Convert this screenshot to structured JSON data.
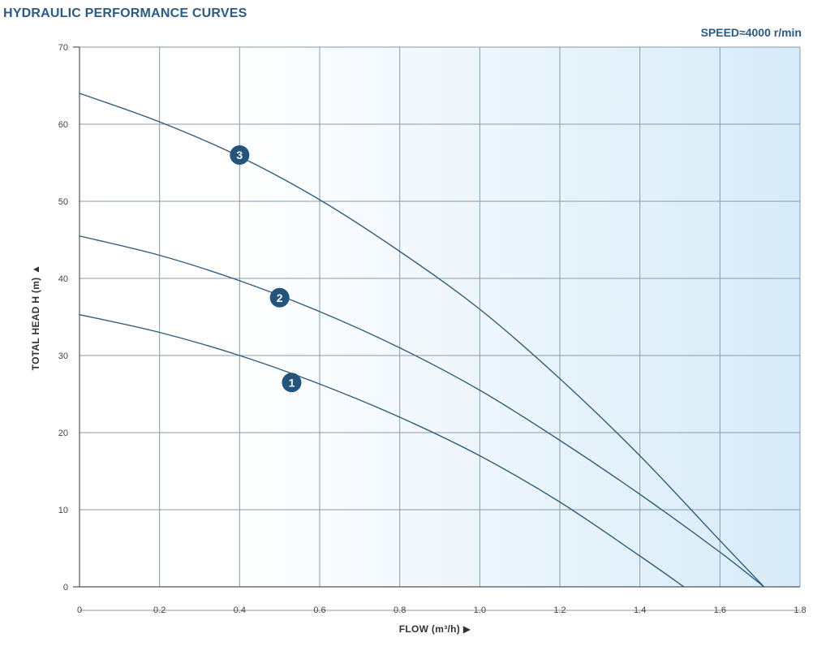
{
  "header": {
    "title": "HYDRAULIC PERFORMANCE CURVES",
    "speed": "SPEED≈4000 r/min"
  },
  "colors": {
    "curve": "#2f5d7c",
    "grid": "#8a9aa8",
    "badge": "#23557c",
    "gradient_start": "#ffffff",
    "gradient_end": "#d7ebf8"
  },
  "chart_data": {
    "type": "line",
    "xlabel": "FLOW (m³/h)",
    "ylabel": "TOTAL HEAD H (m)",
    "xlim": [
      0,
      1.8
    ],
    "ylim": [
      0,
      70
    ],
    "xticks": [
      "0",
      "0.2",
      "0.4",
      "0.6",
      "0.8",
      "1.0",
      "1.2",
      "1.4",
      "1.6",
      "1.8"
    ],
    "yticks": [
      "0",
      "10",
      "20",
      "30",
      "40",
      "50",
      "60",
      "70"
    ],
    "grid": true,
    "series": [
      {
        "name": "1",
        "x": [
          0,
          0.2,
          0.4,
          0.6,
          0.8,
          1.0,
          1.2,
          1.4,
          1.51
        ],
        "y": [
          35.3,
          33.0,
          30.0,
          26.3,
          22.0,
          17.0,
          11.0,
          4.0,
          0
        ]
      },
      {
        "name": "2",
        "x": [
          0,
          0.2,
          0.4,
          0.6,
          0.8,
          1.0,
          1.2,
          1.4,
          1.6,
          1.71
        ],
        "y": [
          45.5,
          43.0,
          39.7,
          35.7,
          31.0,
          25.5,
          19.0,
          12.0,
          4.5,
          0
        ]
      },
      {
        "name": "3",
        "x": [
          0,
          0.2,
          0.4,
          0.6,
          0.8,
          1.0,
          1.2,
          1.4,
          1.6,
          1.71
        ],
        "y": [
          64.0,
          60.3,
          55.8,
          50.2,
          43.5,
          36.0,
          27.0,
          17.0,
          6.0,
          0
        ]
      }
    ],
    "annotations": [
      {
        "label": "1",
        "x": 0.53,
        "y": 26.5
      },
      {
        "label": "2",
        "x": 0.5,
        "y": 37.5
      },
      {
        "label": "3",
        "x": 0.4,
        "y": 56.0
      }
    ]
  }
}
